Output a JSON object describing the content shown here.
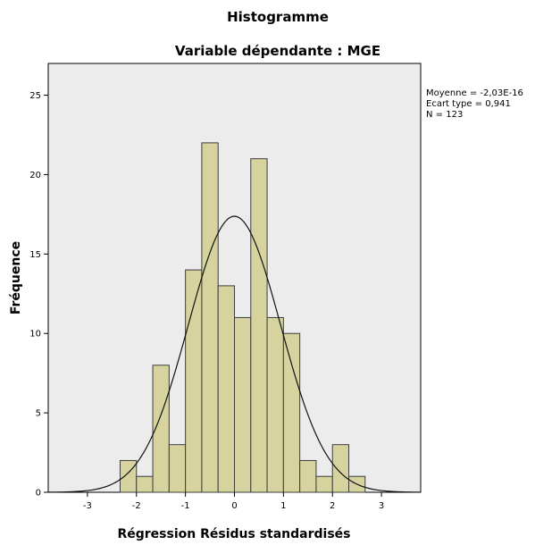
{
  "colors": {
    "plot_background": "#ececec",
    "bar_fill": "#d6d39e",
    "bar_stroke": "#3d3d3d",
    "curve": "#111111"
  },
  "chart_data": {
    "type": "bar",
    "title": "Histogramme",
    "subtitle": "Variable dépendante : MGE",
    "xlabel": "Régression Résidus standardisés",
    "ylabel": "Fréquence",
    "xlim": [
      -3.8,
      3.8
    ],
    "ylim": [
      0,
      27
    ],
    "x_ticks": [
      -3,
      -2,
      -1,
      0,
      1,
      2,
      3
    ],
    "y_ticks": [
      0,
      5,
      10,
      15,
      20,
      25
    ],
    "bin_width": 0.3333,
    "bins": [
      {
        "start": -2.3333,
        "count": 2
      },
      {
        "start": -2.0,
        "count": 1
      },
      {
        "start": -1.6667,
        "count": 8
      },
      {
        "start": -1.3333,
        "count": 3
      },
      {
        "start": -1.0,
        "count": 14
      },
      {
        "start": -0.6667,
        "count": 22
      },
      {
        "start": -0.3333,
        "count": 13
      },
      {
        "start": 0.0,
        "count": 11
      },
      {
        "start": 0.3333,
        "count": 21
      },
      {
        "start": 0.6667,
        "count": 11
      },
      {
        "start": 1.0,
        "count": 10
      },
      {
        "start": 1.3333,
        "count": 2
      },
      {
        "start": 1.6667,
        "count": 1
      },
      {
        "start": 2.0,
        "count": 3
      },
      {
        "start": 2.3333,
        "count": 1
      }
    ],
    "normal_curve": {
      "mean": 0,
      "sd": 0.941,
      "n": 123
    },
    "grid": false,
    "stats": {
      "mean_label": "Moyenne = -2,03E-16",
      "sd_label": "Ecart type = 0,941",
      "n_label": "N = 123"
    }
  }
}
